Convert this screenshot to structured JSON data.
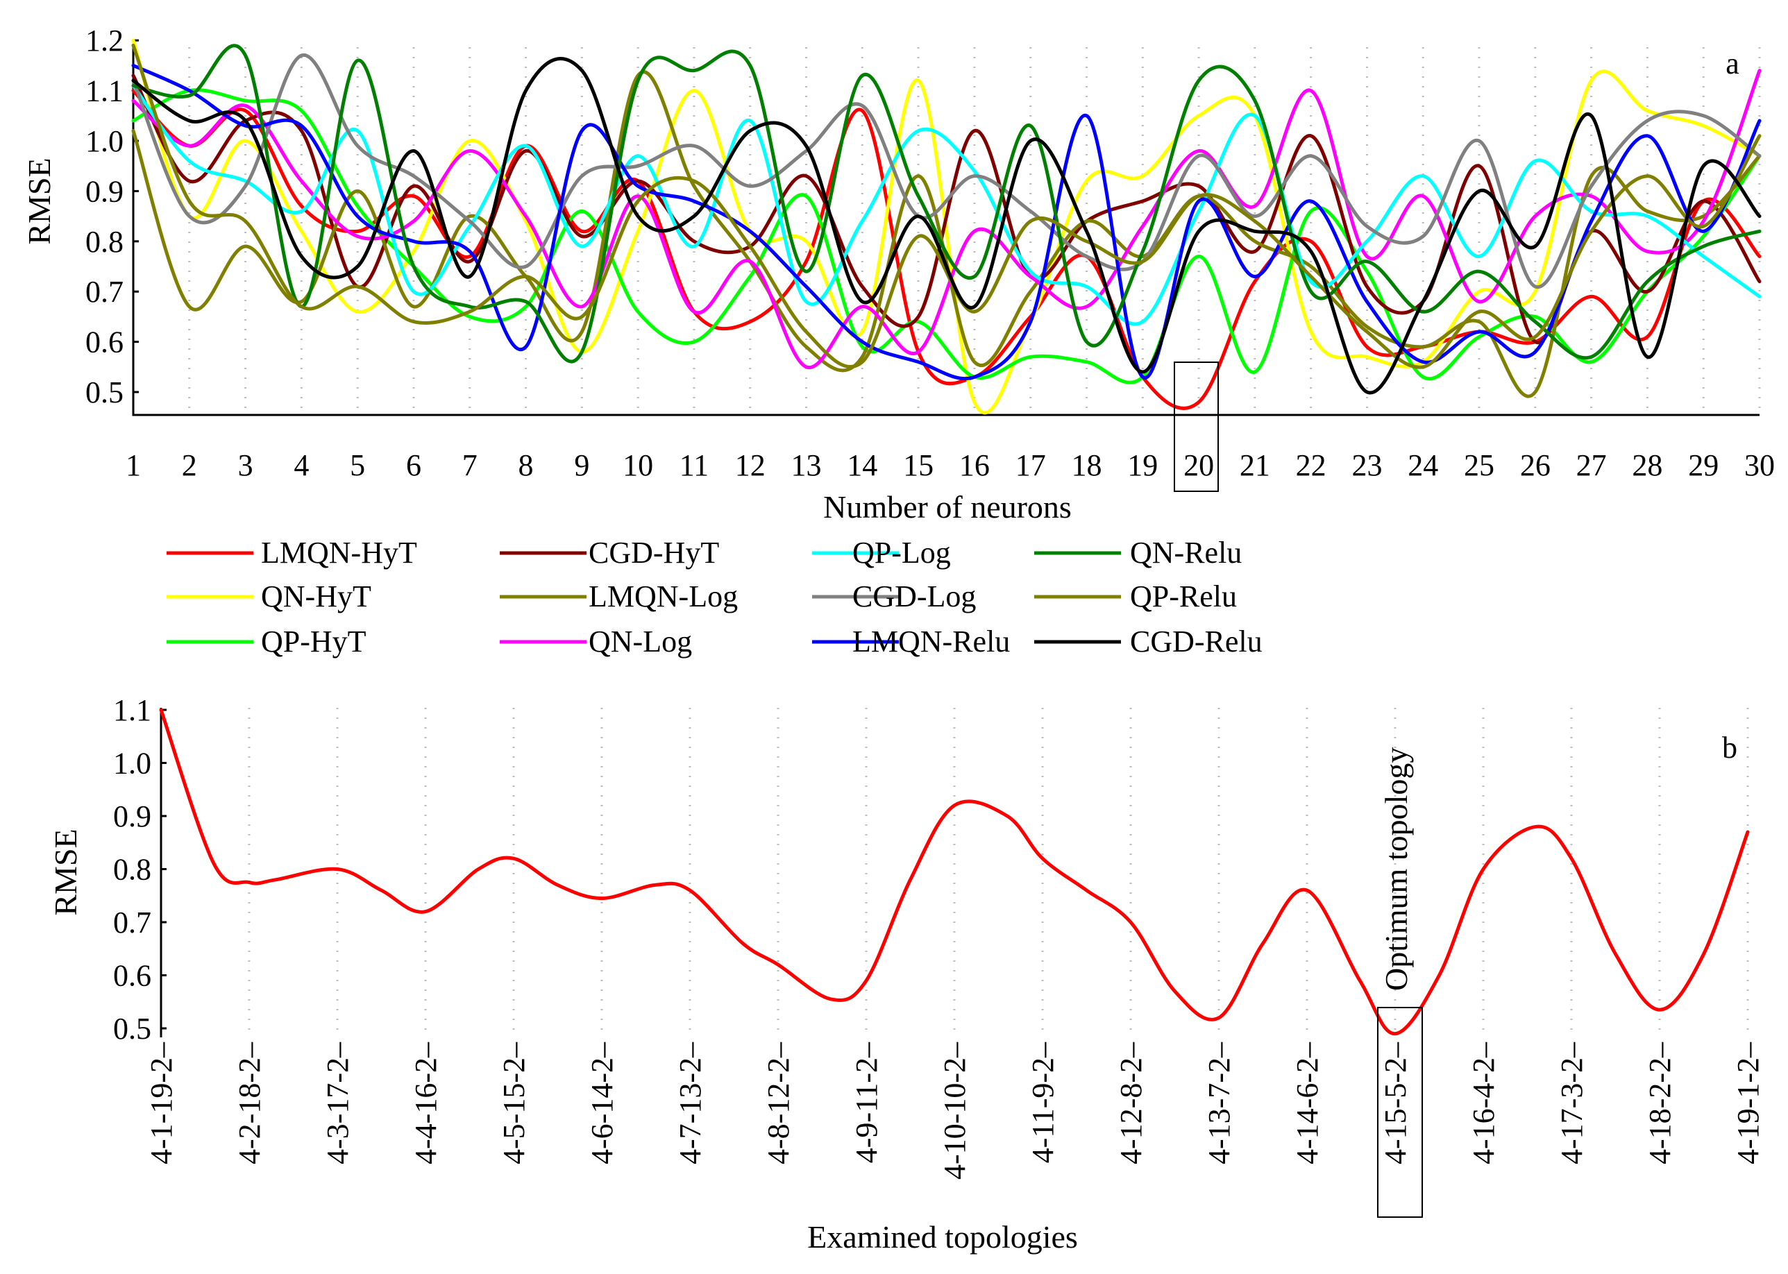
{
  "chart_data": [
    {
      "type": "line",
      "panel_label": "a",
      "xlabel": "Number of neurons",
      "ylabel": "RMSE",
      "x": [
        1,
        2,
        3,
        4,
        5,
        6,
        7,
        8,
        9,
        10,
        11,
        12,
        13,
        14,
        15,
        16,
        17,
        18,
        19,
        20,
        21,
        22,
        23,
        24,
        25,
        26,
        27,
        28,
        29,
        30
      ],
      "x_ticks": [
        "1",
        "2",
        "3",
        "4",
        "5",
        "6",
        "7",
        "8",
        "9",
        "10",
        "11",
        "12",
        "13",
        "14",
        "15",
        "16",
        "17",
        "18",
        "19",
        "20",
        "21",
        "22",
        "23",
        "24",
        "25",
        "26",
        "27",
        "28",
        "29",
        "30"
      ],
      "y_ticks": [
        "0.5",
        "0.6",
        "0.7",
        "0.8",
        "0.9",
        "1.0",
        "1.1",
        "1.2"
      ],
      "ylim": [
        0.45,
        1.2
      ],
      "highlight": {
        "x": 20,
        "label": "20"
      },
      "series": [
        {
          "name": "LMQN-HyT",
          "color": "#ff0000",
          "values": [
            1.1,
            0.99,
            1.06,
            0.87,
            0.82,
            0.89,
            0.77,
            0.99,
            0.82,
            0.92,
            0.66,
            0.64,
            0.76,
            1.06,
            0.58,
            0.53,
            0.65,
            0.77,
            0.53,
            0.48,
            0.72,
            0.8,
            0.59,
            0.59,
            0.62,
            0.6,
            0.69,
            0.61,
            0.88,
            0.77
          ]
        },
        {
          "name": "QN-HyT",
          "color": "#ffff00",
          "values": [
            1.2,
            0.85,
            1.0,
            0.82,
            0.66,
            0.78,
            1.0,
            0.84,
            0.58,
            0.82,
            1.1,
            0.82,
            0.8,
            0.62,
            1.12,
            0.48,
            0.64,
            0.92,
            0.93,
            1.05,
            1.05,
            0.62,
            0.57,
            0.56,
            0.7,
            0.7,
            1.12,
            1.06,
            1.03,
            0.97
          ]
        },
        {
          "name": "QP-HyT",
          "color": "#00ff00",
          "values": [
            1.04,
            1.1,
            1.08,
            1.06,
            0.87,
            0.75,
            0.65,
            0.67,
            0.86,
            0.66,
            0.6,
            0.73,
            0.89,
            0.59,
            0.64,
            0.53,
            0.57,
            0.56,
            0.53,
            0.77,
            0.54,
            0.86,
            0.74,
            0.53,
            0.61,
            0.65,
            0.56,
            0.7,
            0.81,
            0.97
          ]
        },
        {
          "name": "CGD-HyT",
          "color": "#800000",
          "values": [
            1.13,
            0.92,
            1.04,
            1.02,
            0.71,
            0.91,
            0.76,
            0.98,
            0.81,
            0.92,
            0.8,
            0.79,
            0.93,
            0.71,
            0.65,
            1.02,
            0.73,
            0.84,
            0.88,
            0.91,
            0.78,
            1.01,
            0.71,
            0.68,
            0.95,
            0.6,
            0.82,
            0.7,
            0.88,
            0.72
          ]
        },
        {
          "name": "LMQN-Log",
          "color": "#808000",
          "values": [
            1.02,
            0.67,
            0.79,
            0.68,
            0.9,
            0.67,
            0.85,
            0.73,
            0.62,
            1.13,
            0.91,
            0.76,
            0.59,
            0.57,
            0.93,
            0.56,
            0.7,
            0.84,
            0.77,
            0.89,
            0.8,
            0.75,
            0.63,
            0.59,
            0.64,
            0.5,
            0.93,
            0.86,
            0.85,
            0.97
          ]
        },
        {
          "name": "QN-Log",
          "color": "#ff00ff",
          "values": [
            1.08,
            0.99,
            1.07,
            0.92,
            0.81,
            0.84,
            0.98,
            0.85,
            0.67,
            0.89,
            0.66,
            0.76,
            0.55,
            0.67,
            0.58,
            0.82,
            0.73,
            0.67,
            0.83,
            0.98,
            0.87,
            1.1,
            0.77,
            0.89,
            0.68,
            0.85,
            0.89,
            0.78,
            0.84,
            1.14
          ]
        },
        {
          "name": "QP-Log",
          "color": "#00ffff",
          "values": [
            1.11,
            0.96,
            0.92,
            0.86,
            1.02,
            0.7,
            0.83,
            0.99,
            0.79,
            0.97,
            0.79,
            1.04,
            0.68,
            0.84,
            1.02,
            0.94,
            0.74,
            0.71,
            0.64,
            0.86,
            1.05,
            0.72,
            0.8,
            0.93,
            0.77,
            0.96,
            0.86,
            0.85,
            0.77,
            0.69
          ]
        },
        {
          "name": "CGD-Log",
          "color": "#808080",
          "values": [
            1.12,
            0.85,
            0.91,
            1.17,
            0.99,
            0.93,
            0.84,
            0.75,
            0.93,
            0.95,
            0.99,
            0.91,
            0.98,
            1.07,
            0.85,
            0.93,
            0.86,
            0.77,
            0.76,
            0.97,
            0.85,
            0.97,
            0.83,
            0.81,
            1.0,
            0.71,
            0.91,
            1.04,
            1.05,
            0.97
          ]
        },
        {
          "name": "LMQN-Relu",
          "color": "#0000ff",
          "values": [
            1.15,
            1.1,
            1.03,
            1.03,
            0.85,
            0.8,
            0.78,
            0.59,
            1.02,
            0.91,
            0.88,
            0.82,
            0.71,
            0.6,
            0.56,
            0.53,
            0.64,
            1.05,
            0.53,
            0.88,
            0.73,
            0.88,
            0.68,
            0.56,
            0.62,
            0.58,
            0.84,
            1.01,
            0.82,
            1.04
          ]
        },
        {
          "name": "QN-Relu",
          "color": "#008000",
          "values": [
            1.11,
            1.09,
            1.17,
            0.67,
            1.16,
            0.75,
            0.67,
            0.68,
            0.58,
            1.12,
            1.14,
            1.15,
            0.74,
            1.13,
            0.89,
            0.73,
            1.03,
            0.6,
            0.78,
            1.12,
            1.08,
            0.7,
            0.76,
            0.66,
            0.74,
            0.64,
            0.57,
            0.72,
            0.79,
            0.82
          ]
        },
        {
          "name": "QP-Relu",
          "color": "#808000",
          "values": [
            1.19,
            0.88,
            0.84,
            0.67,
            0.71,
            0.64,
            0.66,
            0.73,
            0.65,
            0.88,
            0.92,
            0.79,
            0.62,
            0.56,
            0.81,
            0.66,
            0.84,
            0.8,
            0.76,
            0.89,
            0.84,
            0.73,
            0.62,
            0.55,
            0.66,
            0.61,
            0.82,
            0.93,
            0.83,
            1.01
          ]
        },
        {
          "name": "CGD-Relu",
          "color": "#000000",
          "values": [
            1.12,
            1.04,
            1.04,
            0.77,
            0.75,
            0.98,
            0.73,
            1.1,
            1.14,
            0.85,
            0.85,
            1.02,
            0.99,
            0.68,
            0.85,
            0.67,
            1.0,
            0.82,
            0.54,
            0.82,
            0.82,
            0.78,
            0.5,
            0.68,
            0.9,
            0.79,
            1.05,
            0.57,
            0.95,
            0.85
          ]
        }
      ]
    },
    {
      "type": "line",
      "panel_label": "b",
      "xlabel": "Examined topologies",
      "ylabel": "RMSE",
      "categories": [
        "4-1-19-2",
        "4-2-18-2",
        "4-3-17-2",
        "4-4-16-2",
        "4-5-15-2",
        "4-6-14-2",
        "4-7-13-2",
        "4-8-12-2",
        "4-9-11-2",
        "4-10-10-2",
        "4-11-9-2",
        "4-12-8-2",
        "4-13-7-2",
        "4-14-6-2",
        "4-15-5-2",
        "4-16-4-2",
        "4-17-3-2",
        "4-18-2-2",
        "4-19-1-2"
      ],
      "x": [
        1,
        2,
        3,
        4,
        5,
        6,
        7,
        8,
        9,
        10,
        11,
        12,
        13,
        14,
        15,
        16,
        17,
        18,
        19
      ],
      "curve_x": [
        1,
        1.6,
        2,
        2.3,
        3,
        3.5,
        4,
        4.6,
        5,
        5.5,
        6,
        6.6,
        7,
        7.6,
        8,
        8.6,
        9,
        9.5,
        10,
        10.6,
        11,
        11.5,
        12,
        12.5,
        13,
        13.5,
        14,
        14.6,
        15,
        15.5,
        16,
        16.6,
        17,
        17.5,
        18,
        18.5,
        19
      ],
      "curve_y": [
        1.1,
        0.81,
        0.775,
        0.78,
        0.8,
        0.76,
        0.72,
        0.8,
        0.82,
        0.77,
        0.745,
        0.77,
        0.76,
        0.66,
        0.62,
        0.555,
        0.59,
        0.78,
        0.92,
        0.9,
        0.82,
        0.76,
        0.7,
        0.57,
        0.52,
        0.66,
        0.76,
        0.59,
        0.49,
        0.6,
        0.8,
        0.88,
        0.82,
        0.64,
        0.535,
        0.64,
        0.87
      ],
      "y_ticks": [
        "0.5",
        "0.6",
        "0.7",
        "0.8",
        "0.9",
        "1.0",
        "1.1"
      ],
      "ylim": [
        0.47,
        1.1
      ],
      "series": [
        {
          "name": "RMSE",
          "color": "#ff0000",
          "values": [
            1.1,
            0.775,
            0.8,
            0.72,
            0.82,
            0.745,
            0.76,
            0.62,
            0.59,
            0.92,
            0.82,
            0.7,
            0.52,
            0.76,
            0.49,
            0.8,
            0.82,
            0.535,
            0.87
          ]
        }
      ],
      "annotation": {
        "text": "Optimum topology",
        "category": "4-15-5-2"
      }
    }
  ]
}
